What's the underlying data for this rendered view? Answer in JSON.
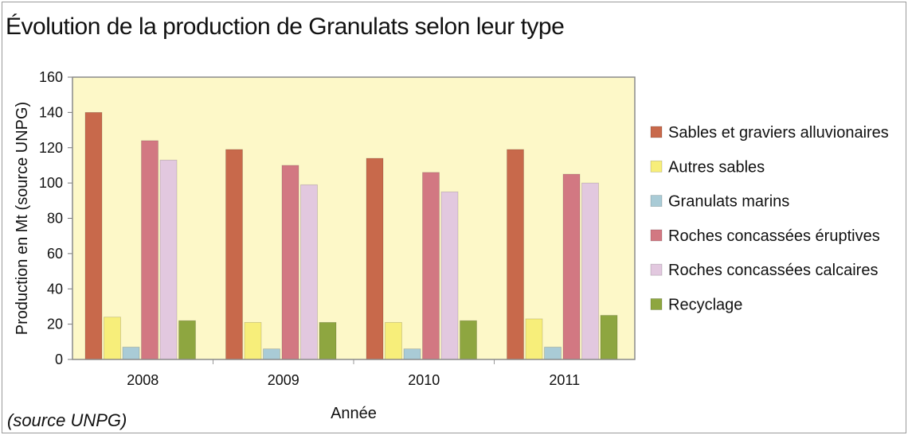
{
  "chart_data": {
    "type": "bar",
    "title": "Évolution de la production de Granulats selon leur type",
    "xlabel": "Année",
    "ylabel": "Production en Mt (source UNPG)",
    "note": "(source UNPG)",
    "categories": [
      "2008",
      "2009",
      "2010",
      "2011"
    ],
    "ylim": [
      0,
      160
    ],
    "yticks": [
      0,
      20,
      40,
      60,
      80,
      100,
      120,
      140,
      160
    ],
    "grid": false,
    "legend_position": "right",
    "plot_background": "#fdf8c8",
    "series": [
      {
        "name": "Sables et graviers alluvionaires",
        "color": "#c8694b",
        "values": [
          140,
          119,
          114,
          119
        ]
      },
      {
        "name": "Autres sables",
        "color": "#f7ee7a",
        "values": [
          24,
          21,
          21,
          23
        ]
      },
      {
        "name": "Granulats marins",
        "color": "#a9cbd6",
        "values": [
          7,
          6,
          6,
          7
        ]
      },
      {
        "name": "Roches concassées éruptives",
        "color": "#d27882",
        "values": [
          124,
          110,
          106,
          105
        ]
      },
      {
        "name": "Roches concassées calcaires",
        "color": "#e2c8df",
        "values": [
          113,
          99,
          95,
          100
        ]
      },
      {
        "name": "Recyclage",
        "color": "#8ea640",
        "values": [
          22,
          21,
          22,
          25
        ]
      }
    ]
  }
}
